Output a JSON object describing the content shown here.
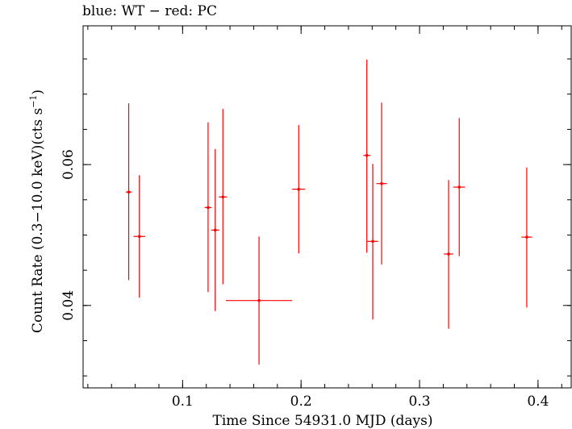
{
  "chart_data": {
    "type": "scatter",
    "title": "blue: WT − red: PC",
    "xlabel": "Time Since 54931.0 MJD (days)",
    "ylabel_main": "Count Rate (0.3−10.0 keV)(cts s",
    "ylabel_sup": "−1",
    "ylabel_end": ")",
    "xlim": [
      0.016,
      0.428
    ],
    "ylim": [
      0.0283,
      0.0797
    ],
    "x_ticks": [
      {
        "value": 0.1,
        "label": "0.1"
      },
      {
        "value": 0.2,
        "label": "0.2"
      },
      {
        "value": 0.3,
        "label": "0.3"
      },
      {
        "value": 0.4,
        "label": "0.4"
      }
    ],
    "x_minor_step": 0.02,
    "y_ticks": [
      {
        "value": 0.04,
        "label": "0.04"
      },
      {
        "value": 0.06,
        "label": "0.06"
      }
    ],
    "y_minor_step": 0.005,
    "grid": false,
    "series": [
      {
        "color": "#ff0000",
        "points": [
          {
            "x": 0.0545,
            "y": 0.0561,
            "xerr": 0.0025,
            "ylo": 0.0436,
            "yhi": 0.0687
          },
          {
            "x": 0.0635,
            "y": 0.0498,
            "xerr": 0.005,
            "ylo": 0.0411,
            "yhi": 0.0585
          },
          {
            "x": 0.1215,
            "y": 0.0539,
            "xerr": 0.003,
            "ylo": 0.0419,
            "yhi": 0.066
          },
          {
            "x": 0.1275,
            "y": 0.0507,
            "xerr": 0.0035,
            "ylo": 0.0392,
            "yhi": 0.0622
          },
          {
            "x": 0.134,
            "y": 0.0554,
            "xerr": 0.0035,
            "ylo": 0.043,
            "yhi": 0.0679
          },
          {
            "x": 0.1645,
            "y": 0.0407,
            "xerr": 0.028,
            "ylo": 0.0316,
            "yhi": 0.0498
          },
          {
            "x": 0.198,
            "y": 0.0565,
            "xerr": 0.0055,
            "ylo": 0.0474,
            "yhi": 0.0656
          },
          {
            "x": 0.2555,
            "y": 0.0613,
            "xerr": 0.003,
            "ylo": 0.0475,
            "yhi": 0.0749
          },
          {
            "x": 0.2605,
            "y": 0.0491,
            "xerr": 0.0045,
            "ylo": 0.038,
            "yhi": 0.0601
          },
          {
            "x": 0.268,
            "y": 0.0573,
            "xerr": 0.0045,
            "ylo": 0.0458,
            "yhi": 0.0688
          },
          {
            "x": 0.3245,
            "y": 0.0473,
            "xerr": 0.004,
            "ylo": 0.0367,
            "yhi": 0.0578
          },
          {
            "x": 0.3335,
            "y": 0.0568,
            "xerr": 0.005,
            "ylo": 0.047,
            "yhi": 0.0666
          },
          {
            "x": 0.3905,
            "y": 0.0497,
            "xerr": 0.0045,
            "ylo": 0.0397,
            "yhi": 0.0596
          }
        ]
      }
    ]
  }
}
